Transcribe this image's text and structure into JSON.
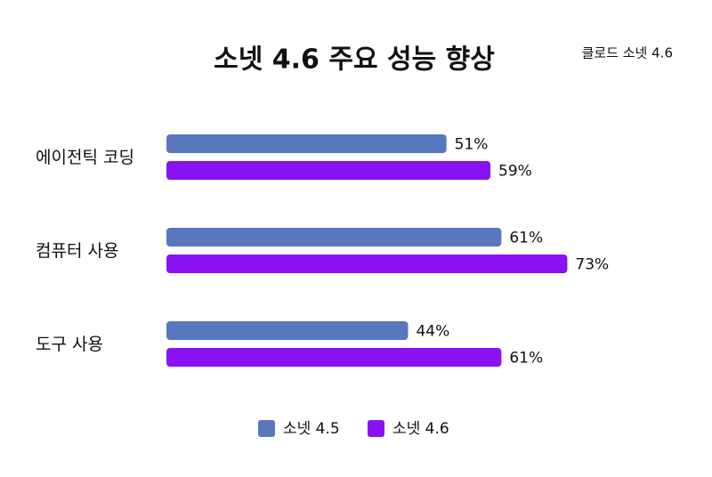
{
  "chart_data": {
    "type": "bar",
    "orientation": "horizontal",
    "title": "소넷 4.6 주요 성능 향상",
    "subtitle": "클로드 소넷 4.6",
    "categories": [
      "에이전틱 코딩",
      "컴퓨터 사용",
      "도구 사용"
    ],
    "series": [
      {
        "name": "소넷 4.5",
        "color": "#5878bd",
        "values": [
          51,
          61,
          44
        ],
        "value_labels": [
          "51%",
          "61%",
          "44%"
        ]
      },
      {
        "name": "소넷 4.6",
        "color": "#8a12f2",
        "values": [
          59,
          73,
          61
        ],
        "value_labels": [
          "59%",
          "73%",
          "61%"
        ]
      }
    ],
    "legend": "bottom"
  }
}
